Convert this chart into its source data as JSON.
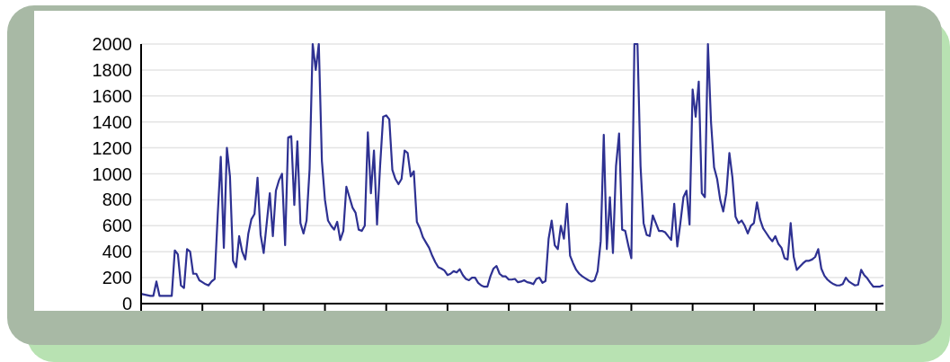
{
  "chart_data": {
    "type": "line",
    "categories": [
      null,
      null,
      null,
      null,
      null,
      null,
      null,
      null,
      null,
      null,
      null,
      null,
      null,
      null,
      null,
      null,
      null,
      null,
      null,
      null,
      null,
      null,
      null,
      null,
      null,
      null,
      null,
      null,
      null,
      null,
      null,
      null,
      null,
      null,
      null,
      null,
      null,
      null,
      null,
      null,
      null,
      null,
      null,
      null,
      null,
      null,
      null,
      null,
      null,
      null,
      null,
      null,
      null,
      null,
      null,
      null,
      null,
      null,
      null,
      null,
      null,
      null,
      null,
      null,
      null,
      null,
      null,
      null,
      null,
      null,
      null,
      null,
      null,
      null,
      null,
      null,
      null,
      null,
      null,
      null,
      null,
      null,
      null,
      null,
      null,
      null,
      null,
      null,
      null,
      null,
      null,
      null,
      null,
      null,
      null,
      null,
      null,
      null,
      null,
      null,
      null,
      null,
      null,
      null,
      null,
      null,
      null,
      null,
      null,
      null,
      null,
      null,
      null,
      null,
      null,
      null,
      null,
      null,
      null,
      null,
      null,
      null,
      null,
      null,
      null,
      null,
      null,
      null,
      null,
      null,
      null,
      null,
      null,
      null,
      null,
      null,
      null,
      null,
      null,
      null,
      null,
      null,
      null,
      null,
      null,
      null,
      null,
      null,
      null,
      null,
      null,
      null,
      null,
      null,
      null,
      null,
      null,
      null,
      null,
      null,
      null,
      null,
      null,
      null,
      null,
      null,
      null,
      null,
      null,
      null,
      null,
      null,
      null,
      null,
      null,
      null,
      null,
      null,
      null,
      null,
      null,
      null,
      null,
      null,
      null,
      null,
      null,
      null,
      null,
      null,
      null,
      null,
      null,
      null,
      null,
      null,
      null,
      null,
      null,
      null,
      null,
      null,
      null,
      null,
      null,
      null,
      null,
      null,
      null,
      null,
      null,
      null,
      null,
      null,
      null,
      null,
      null,
      null,
      null,
      null,
      null,
      null,
      null,
      null,
      null,
      null,
      null,
      null,
      null,
      null,
      null,
      null,
      null,
      null,
      null,
      null,
      null,
      null,
      null,
      null,
      null,
      null,
      null
    ],
    "ylim": [
      0,
      2000
    ],
    "yticks": [
      0,
      200,
      400,
      600,
      800,
      1000,
      1200,
      1400,
      1600,
      1800,
      2000
    ],
    "grid": "y",
    "tick_labels": "y",
    "marker": "none",
    "line_style": "solid",
    "series": [
      {
        "color": "#2e3192",
        "values": [
          75,
          70,
          65,
          60,
          60,
          170,
          60,
          60,
          60,
          60,
          60,
          410,
          380,
          140,
          120,
          420,
          400,
          230,
          230,
          180,
          165,
          150,
          140,
          170,
          190,
          680,
          1130,
          430,
          1200,
          980,
          330,
          280,
          520,
          400,
          340,
          540,
          650,
          690,
          970,
          530,
          390,
          620,
          850,
          520,
          870,
          950,
          1000,
          450,
          1280,
          1290,
          760,
          1250,
          620,
          540,
          640,
          1040,
          2000,
          1800,
          2000,
          1100,
          800,
          640,
          600,
          570,
          630,
          490,
          560,
          900,
          820,
          740,
          700,
          570,
          560,
          600,
          1320,
          850,
          1180,
          610,
          1060,
          1440,
          1450,
          1420,
          1030,
          960,
          920,
          960,
          1180,
          1160,
          980,
          1020,
          630,
          580,
          510,
          470,
          430,
          370,
          320,
          280,
          270,
          255,
          220,
          230,
          250,
          240,
          265,
          220,
          190,
          180,
          200,
          200,
          160,
          140,
          130,
          130,
          210,
          270,
          290,
          230,
          210,
          210,
          185,
          185,
          190,
          165,
          170,
          180,
          165,
          160,
          150,
          190,
          200,
          160,
          175,
          500,
          640,
          450,
          420,
          600,
          500,
          770,
          370,
          310,
          260,
          230,
          210,
          195,
          180,
          170,
          180,
          250,
          480,
          1300,
          420,
          820,
          390,
          1060,
          1310,
          570,
          560,
          450,
          350,
          2000,
          2000,
          1060,
          620,
          530,
          520,
          680,
          620,
          560,
          560,
          550,
          520,
          490,
          770,
          440,
          620,
          820,
          870,
          610,
          1650,
          1440,
          1710,
          850,
          820,
          2000,
          1400,
          1050,
          960,
          800,
          710,
          850,
          1160,
          970,
          670,
          620,
          640,
          600,
          540,
          600,
          620,
          780,
          650,
          580,
          545,
          510,
          480,
          520,
          460,
          430,
          350,
          340,
          620,
          360,
          260,
          285,
          310,
          330,
          330,
          340,
          360,
          420,
          270,
          215,
          185,
          165,
          150,
          140,
          140,
          150,
          200,
          170,
          155,
          140,
          145,
          260,
          220,
          195,
          160,
          130,
          130,
          130,
          140
        ]
      }
    ]
  }
}
